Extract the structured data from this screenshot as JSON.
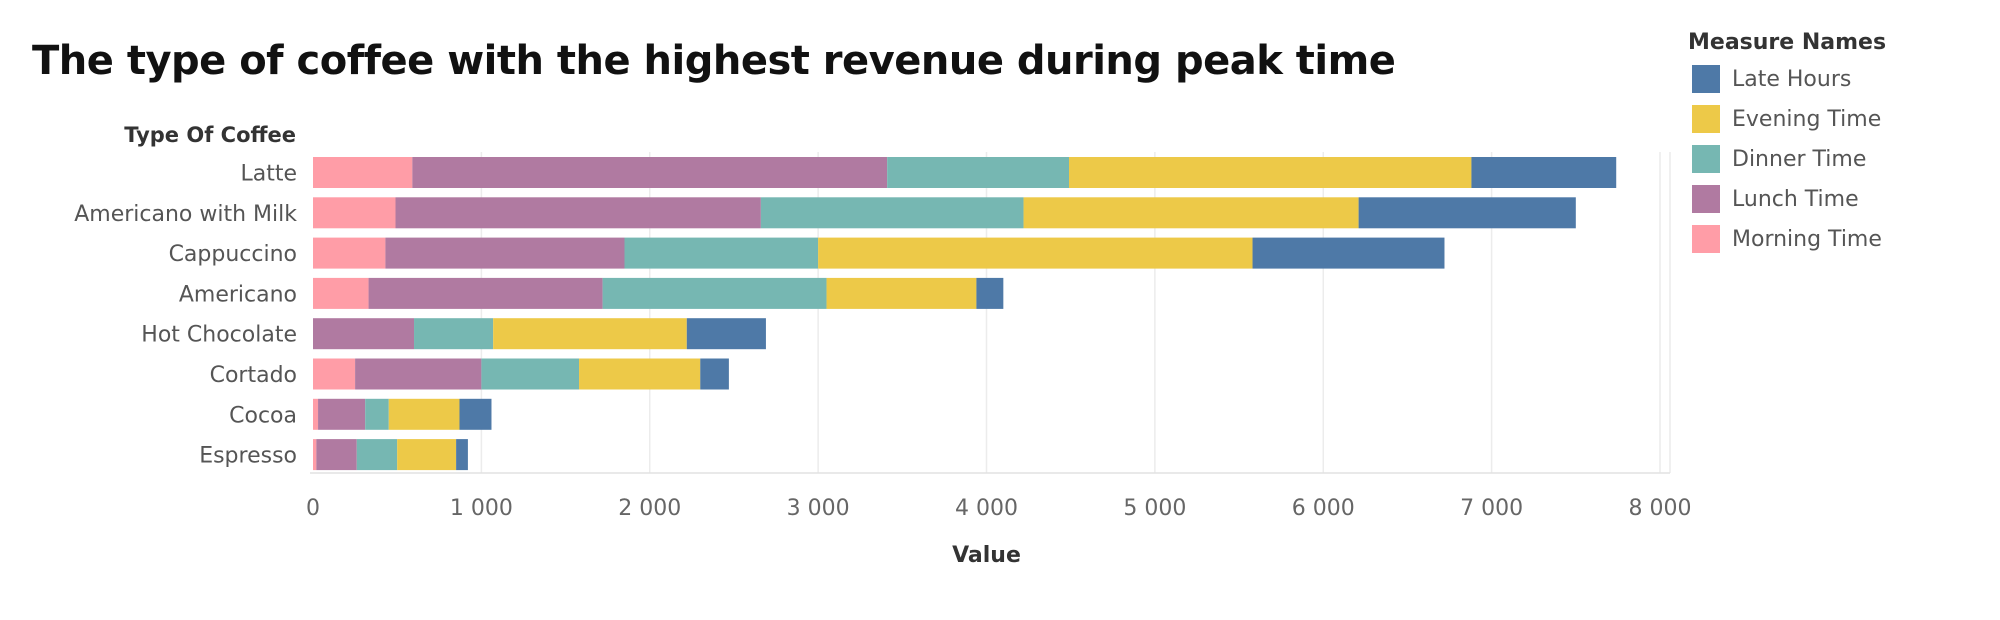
{
  "chart_data": {
    "type": "bar",
    "orientation": "horizontal",
    "stacked": true,
    "title": "The type of coffee with the highest revenue during peak time",
    "ylabel": "Type Of Coffee",
    "xlabel": "Value",
    "xlim": [
      0,
      8000
    ],
    "xticks": [
      0,
      1000,
      2000,
      3000,
      4000,
      5000,
      6000,
      7000,
      8000
    ],
    "xtick_labels": [
      "0",
      "1 000",
      "2 000",
      "3 000",
      "4 000",
      "5 000",
      "6 000",
      "7 000",
      "8 000"
    ],
    "grid": true,
    "categories": [
      "Latte",
      "Americano with Milk",
      "Cappuccino",
      "Americano",
      "Hot Chocolate",
      "Cortado",
      "Cocoa",
      "Espresso"
    ],
    "series": [
      {
        "name": "Morning Time",
        "color": "#FF9DA7",
        "values": [
          590,
          490,
          430,
          330,
          0,
          250,
          30,
          20
        ]
      },
      {
        "name": "Lunch Time",
        "color": "#B07AA1",
        "values": [
          2820,
          2170,
          1420,
          1390,
          600,
          750,
          280,
          240
        ]
      },
      {
        "name": "Dinner Time",
        "color": "#76B7B2",
        "values": [
          1080,
          1560,
          1150,
          1330,
          470,
          580,
          140,
          240
        ]
      },
      {
        "name": "Evening Time",
        "color": "#EDC948",
        "values": [
          2390,
          1990,
          2580,
          890,
          1150,
          720,
          420,
          350
        ]
      },
      {
        "name": "Late Hours",
        "color": "#4E79A7",
        "values": [
          860,
          1290,
          1140,
          160,
          470,
          170,
          190,
          70
        ]
      }
    ],
    "legend": {
      "title": "Measure Names",
      "position": "top-right",
      "order": [
        "Late Hours",
        "Evening Time",
        "Dinner Time",
        "Lunch Time",
        "Morning Time"
      ]
    }
  }
}
